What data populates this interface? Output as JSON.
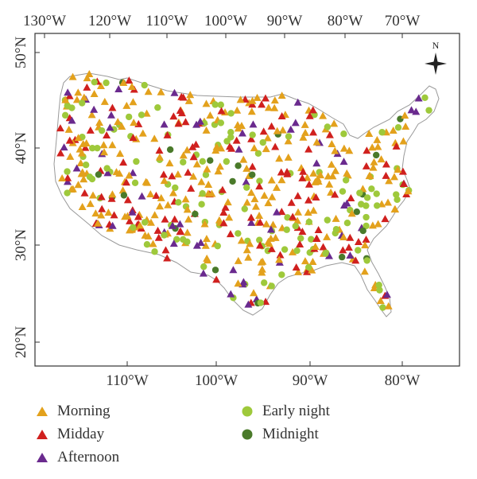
{
  "map": {
    "top_axis_labels": [
      "130°W",
      "120°W",
      "110°W",
      "100°W",
      "90°W",
      "80°W",
      "70°W"
    ],
    "bottom_axis_labels": [
      "110°W",
      "100°W",
      "90°W",
      "80°W"
    ],
    "left_axis_labels": [
      "50°N",
      "40°N",
      "30°N",
      "20°N"
    ],
    "north_arrow_label": "N"
  },
  "legend": {
    "items": [
      {
        "label": "Morning",
        "color": "#e3a11c",
        "shape": "triangle"
      },
      {
        "label": "Midday",
        "color": "#d0201e",
        "shape": "triangle"
      },
      {
        "label": "Afternoon",
        "color": "#6a2a8e",
        "shape": "triangle"
      },
      {
        "label": "Early night",
        "color": "#9ec93b",
        "shape": "circle"
      },
      {
        "label": "Midnight",
        "color": "#4a7a2a",
        "shape": "circle"
      }
    ]
  }
}
